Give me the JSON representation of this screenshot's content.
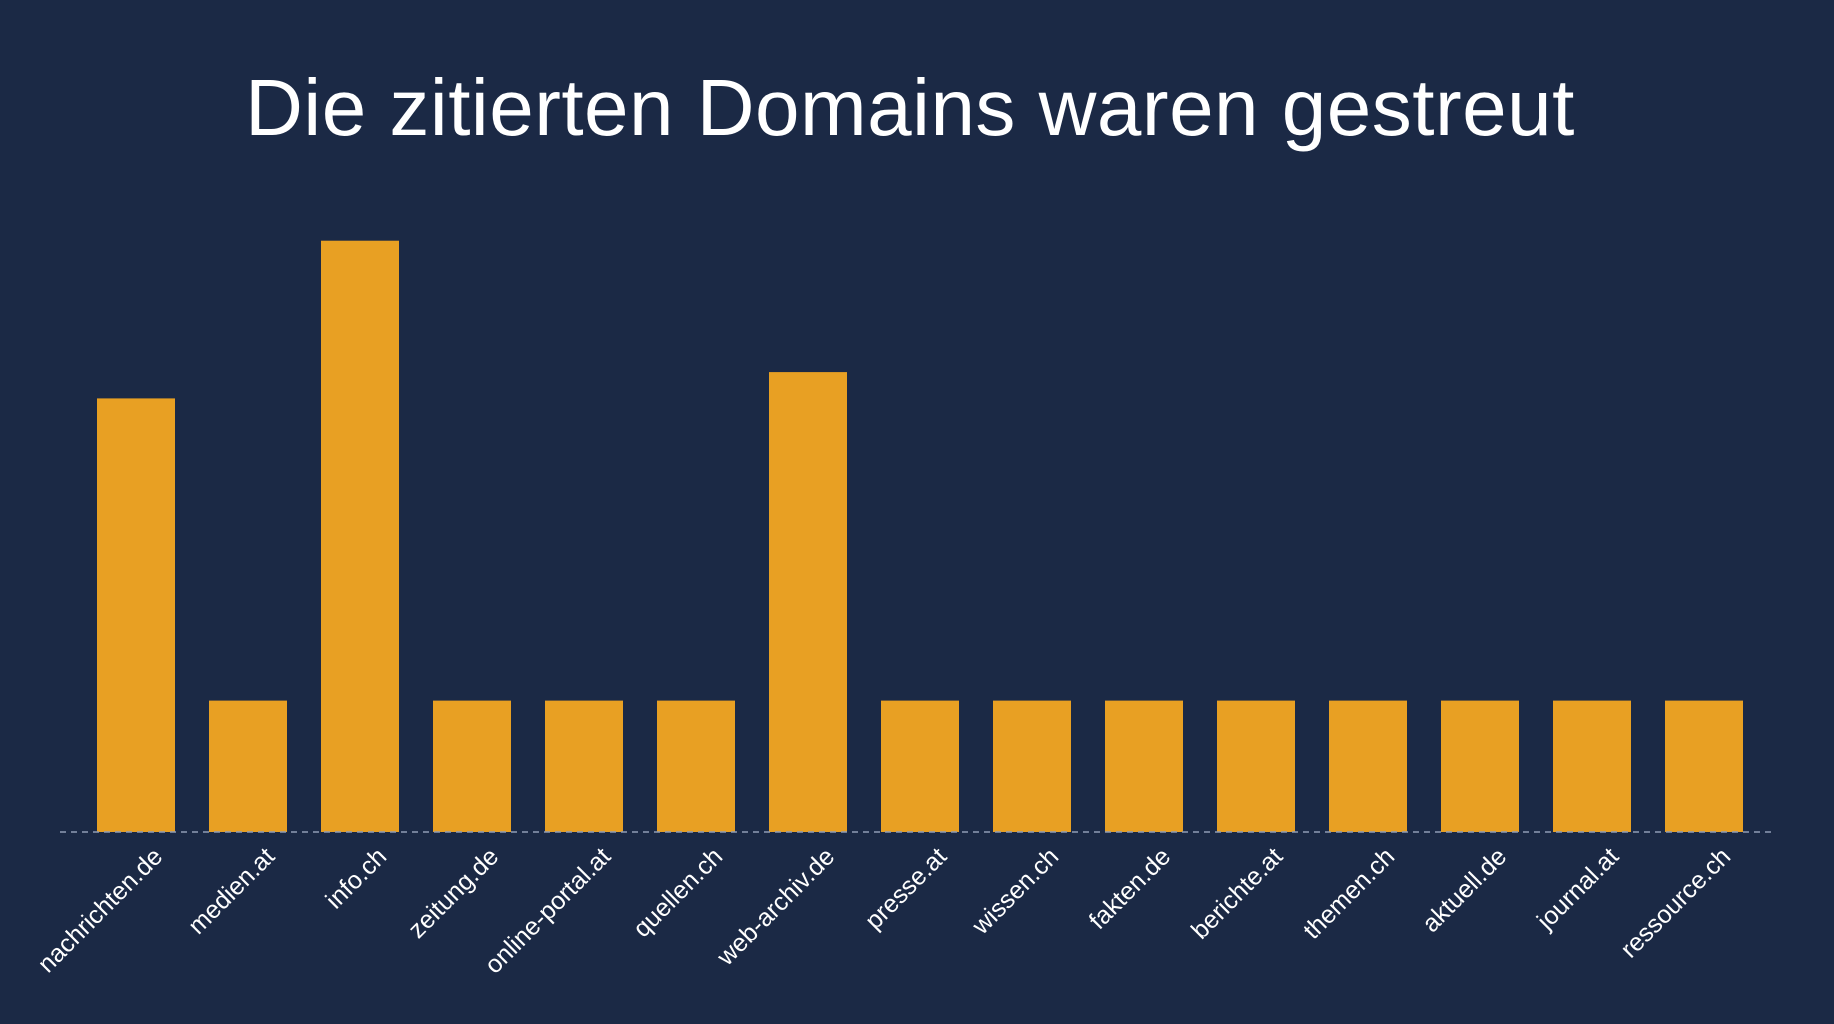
{
  "chart_data": {
    "type": "bar",
    "title": "Die zitierten Domains waren gestreut",
    "xlabel": "",
    "ylabel": "",
    "categories": [
      "nachrichten.de",
      "medien.at",
      "info.ch",
      "zeitung.de",
      "online-portal.at",
      "quellen.ch",
      "web-archiv.de",
      "presse.at",
      "wissen.ch",
      "fakten.de",
      "berichte.at",
      "themen.ch",
      "aktuell.de",
      "journal.at",
      "ressource.ch"
    ],
    "values": [
      3.3,
      1,
      4.5,
      1,
      1,
      1,
      3.5,
      1,
      1,
      1,
      1,
      1,
      1,
      1,
      1
    ],
    "ylim": [
      0,
      5
    ],
    "grid": false,
    "legend": "none",
    "colors": {
      "background": "#1b2945",
      "bar": "#e8a023",
      "baseline": "#8f9cb5",
      "text": "#ffffff"
    }
  }
}
